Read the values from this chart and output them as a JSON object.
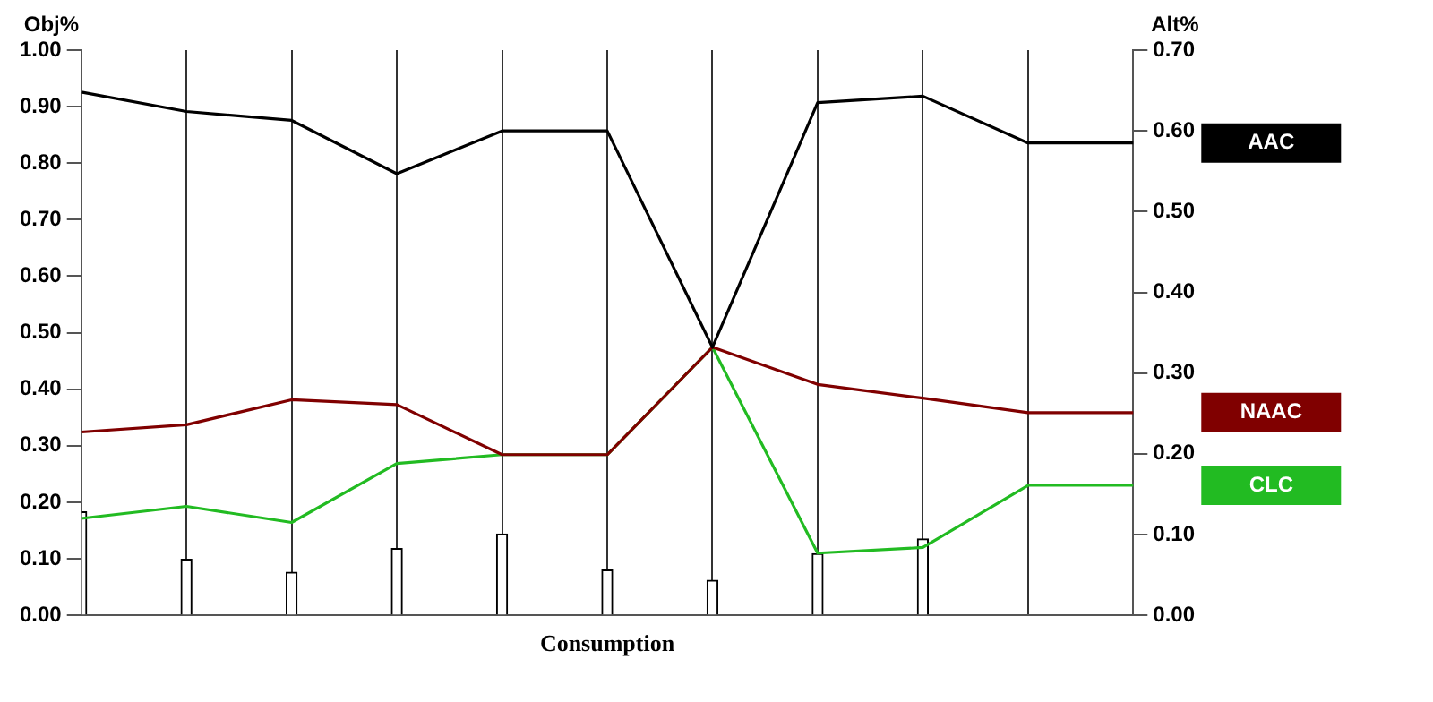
{
  "chart_data": {
    "type": "line",
    "xlabel": "Consumption",
    "ylabel": "Obj%",
    "y2label": "Alt%",
    "categories": [
      null,
      null,
      null,
      null,
      null,
      null,
      null,
      null,
      null,
      null,
      null
    ],
    "series": [
      {
        "type": "bar",
        "color": "#ffffff",
        "values": [
          0.183,
          0.099,
          0.076,
          0.118,
          0.144,
          0.08,
          0.062,
          0.109,
          0.135,
          null,
          null
        ]
      },
      {
        "name": "AAC",
        "color": "#000000",
        "axis": "y2",
        "values": [
          0.648,
          0.624,
          0.613,
          0.547,
          0.6,
          0.6,
          0.332,
          0.635,
          0.643,
          0.585,
          0.585
        ]
      },
      {
        "name": "NAAC",
        "color": "#800000",
        "axis": "y2",
        "values": [
          0.227,
          0.236,
          0.267,
          0.261,
          0.199,
          0.199,
          0.332,
          0.286,
          0.269,
          0.251,
          0.251
        ]
      },
      {
        "name": "CLC",
        "color": "#22bb22",
        "axis": "y2",
        "values": [
          0.12,
          0.135,
          0.115,
          0.188,
          0.199,
          0.199,
          0.332,
          0.077,
          0.084,
          0.161,
          0.161
        ]
      }
    ],
    "ylim": [
      0,
      1
    ],
    "yticks": [
      {
        "value": 0,
        "label": "0.00"
      },
      {
        "value": 0.1,
        "label": "0.10"
      },
      {
        "value": 0.2,
        "label": "0.20"
      },
      {
        "value": 0.3,
        "label": "0.30"
      },
      {
        "value": 0.4,
        "label": "0.40"
      },
      {
        "value": 0.5,
        "label": "0.50"
      },
      {
        "value": 0.6,
        "label": "0.60"
      },
      {
        "value": 0.7,
        "label": "0.70"
      },
      {
        "value": 0.8,
        "label": "0.80"
      },
      {
        "value": 0.9,
        "label": "0.90"
      },
      {
        "value": 1,
        "label": "1.00"
      }
    ],
    "y2lim": [
      0,
      0.7
    ],
    "y2ticks": [
      {
        "value": 0,
        "label": "0.00"
      },
      {
        "value": 0.1,
        "label": "0.10"
      },
      {
        "value": 0.2,
        "label": "0.20"
      },
      {
        "value": 0.3,
        "label": "0.30"
      },
      {
        "value": 0.4,
        "label": "0.40"
      },
      {
        "value": 0.5,
        "label": "0.50"
      },
      {
        "value": 0.6,
        "label": "0.60"
      },
      {
        "value": 0.7,
        "label": "0.70"
      }
    ],
    "grid": "x",
    "marker": "none",
    "line_style": "solid"
  }
}
